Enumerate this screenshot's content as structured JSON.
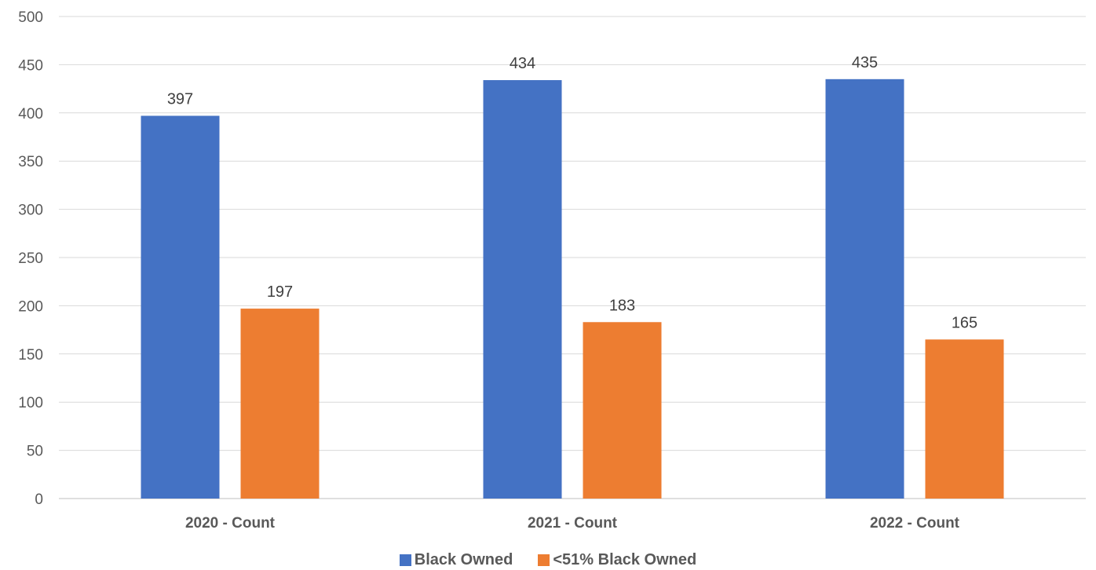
{
  "chart_data": {
    "type": "bar",
    "categories": [
      "2020 - Count",
      "2021 - Count",
      "2022 - Count"
    ],
    "series": [
      {
        "name": "Black Owned",
        "values": [
          397,
          434,
          435
        ],
        "color": "#4472C4"
      },
      {
        "name": "<51% Black Owned",
        "values": [
          197,
          183,
          165
        ],
        "color": "#ED7D31"
      }
    ],
    "ylim": [
      0,
      500
    ],
    "yticks": [
      0,
      50,
      100,
      150,
      200,
      250,
      300,
      350,
      400,
      450,
      500
    ],
    "grid": true,
    "legend_position": "bottom",
    "data_labels": true,
    "title": "",
    "xlabel": "",
    "ylabel": ""
  }
}
